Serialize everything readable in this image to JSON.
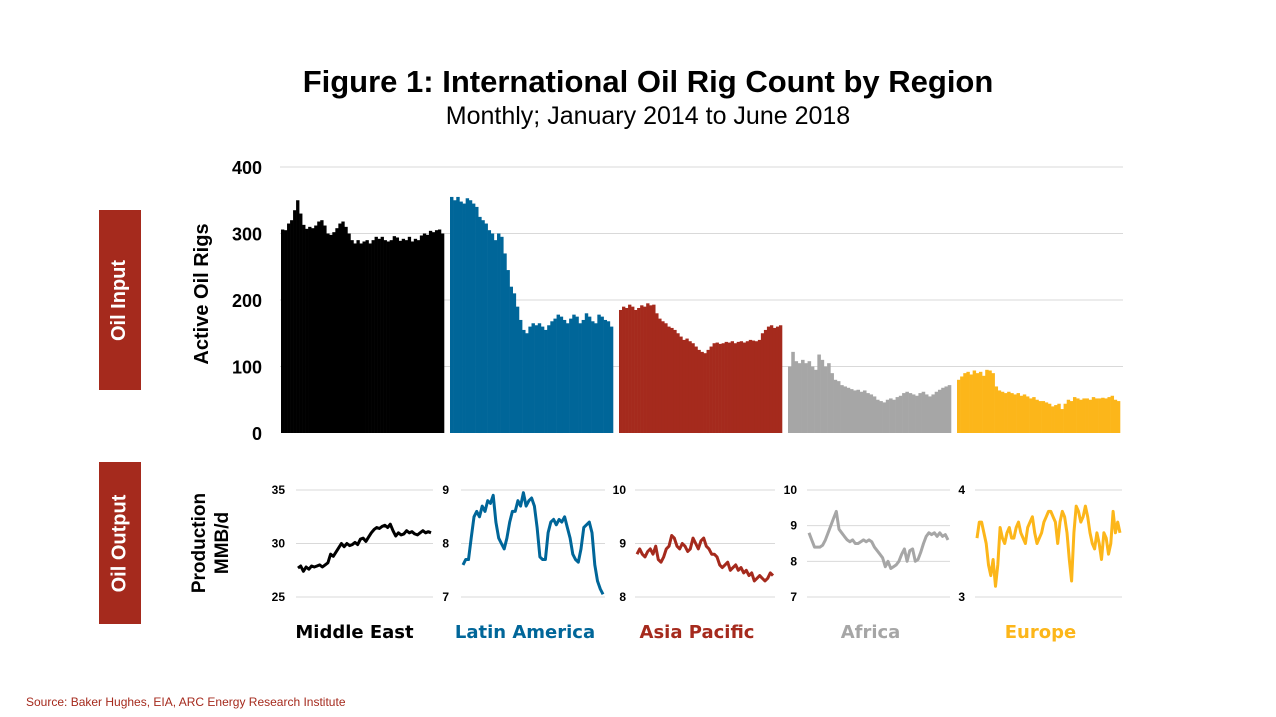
{
  "title": "Figure 1: International Oil Rig Count by Region",
  "subtitle": "Monthly; January 2014 to June 2018",
  "side_labels": {
    "input": "Oil Input",
    "output": "Oil Output"
  },
  "source": "Source: Baker Hughes, EIA, ARC Energy Research Institute",
  "chart_data": [
    {
      "type": "bar",
      "title": "",
      "ylabel": "Active Oil Rigs",
      "ylim": [
        0,
        400
      ],
      "yticks": [
        "0",
        "100",
        "200",
        "300",
        "400"
      ],
      "grid": true,
      "series": [
        {
          "name": "Middle East",
          "color": "#000000",
          "values": [
            306,
            305,
            315,
            320,
            335,
            350,
            330,
            313,
            307,
            310,
            308,
            312,
            318,
            320,
            312,
            300,
            298,
            302,
            308,
            315,
            318,
            310,
            300,
            290,
            285,
            290,
            285,
            288,
            290,
            285,
            290,
            295,
            292,
            295,
            290,
            288,
            290,
            296,
            294,
            289,
            292,
            290,
            295,
            288,
            292,
            290,
            297,
            300,
            298,
            304,
            302,
            305,
            306,
            300
          ]
        },
        {
          "name": "Latin America",
          "color": "#006699",
          "values": [
            355,
            350,
            355,
            348,
            345,
            353,
            350,
            345,
            340,
            325,
            320,
            315,
            305,
            300,
            290,
            300,
            295,
            270,
            245,
            220,
            210,
            190,
            170,
            155,
            150,
            160,
            165,
            162,
            165,
            160,
            155,
            162,
            168,
            172,
            178,
            175,
            170,
            165,
            172,
            178,
            175,
            165,
            170,
            180,
            175,
            168,
            165,
            178,
            175,
            170,
            168,
            160
          ]
        },
        {
          "name": "Asia Pacific",
          "color": "#a52a1d",
          "values": [
            185,
            190,
            188,
            193,
            190,
            185,
            188,
            192,
            190,
            195,
            192,
            193,
            180,
            172,
            168,
            165,
            160,
            158,
            155,
            150,
            145,
            140,
            142,
            138,
            135,
            130,
            125,
            122,
            120,
            125,
            130,
            135,
            136,
            134,
            135,
            137,
            136,
            138,
            135,
            137,
            138,
            136,
            138,
            140,
            139,
            138,
            140,
            150,
            155,
            160,
            162,
            158,
            160,
            162
          ]
        },
        {
          "name": "Africa",
          "color": "#a6a6a6",
          "values": [
            100,
            122,
            108,
            105,
            110,
            105,
            108,
            100,
            95,
            118,
            110,
            100,
            105,
            90,
            80,
            78,
            72,
            70,
            68,
            66,
            64,
            65,
            62,
            64,
            60,
            58,
            55,
            50,
            48,
            46,
            50,
            52,
            50,
            54,
            56,
            60,
            62,
            60,
            58,
            56,
            60,
            62,
            58,
            55,
            58,
            62,
            65,
            68,
            70,
            72
          ]
        },
        {
          "name": "Europe",
          "color": "#fcb61a",
          "values": [
            80,
            85,
            90,
            92,
            88,
            94,
            90,
            92,
            86,
            95,
            94,
            90,
            70,
            64,
            62,
            60,
            62,
            60,
            58,
            60,
            56,
            58,
            55,
            52,
            54,
            50,
            48,
            48,
            46,
            44,
            40,
            42,
            44,
            36,
            44,
            50,
            48,
            54,
            52,
            50,
            52,
            52,
            50,
            54,
            52,
            52,
            53,
            52,
            54,
            56,
            50,
            48
          ]
        }
      ]
    },
    {
      "type": "line",
      "title": "Middle East",
      "ylabel": "Production MMB/d",
      "ylim": [
        25,
        35
      ],
      "yticks": [
        "25",
        "30",
        "35"
      ],
      "color": "#000000",
      "values": [
        27.7,
        27.9,
        27.4,
        27.8,
        27.6,
        27.9,
        27.8,
        27.9,
        28.0,
        27.8,
        28.0,
        28.2,
        29.0,
        28.8,
        29.2,
        29.6,
        30.0,
        29.7,
        30.0,
        29.8,
        29.9,
        30.1,
        29.9,
        30.4,
        30.5,
        30.2,
        30.6,
        31.0,
        31.3,
        31.5,
        31.4,
        31.6,
        31.7,
        31.5,
        31.8,
        31.2,
        30.7,
        31.0,
        30.8,
        30.9,
        31.2,
        31.0,
        31.1,
        30.9,
        30.8,
        31.0,
        31.2,
        31.0,
        31.1,
        31.0
      ]
    },
    {
      "type": "line",
      "title": "Latin America",
      "ylim": [
        7,
        9
      ],
      "yticks": [
        "7",
        "8",
        "9"
      ],
      "color": "#006699",
      "values": [
        7.6,
        7.7,
        7.7,
        8.1,
        8.5,
        8.6,
        8.5,
        8.7,
        8.6,
        8.8,
        8.75,
        8.9,
        8.4,
        8.1,
        8.0,
        7.9,
        8.1,
        8.4,
        8.6,
        8.6,
        8.8,
        8.7,
        8.95,
        8.7,
        8.8,
        8.85,
        8.7,
        8.3,
        7.75,
        7.7,
        7.7,
        8.2,
        8.4,
        8.45,
        8.35,
        8.45,
        8.4,
        8.5,
        8.3,
        8.1,
        7.8,
        7.7,
        7.65,
        7.9,
        8.3,
        8.35,
        8.4,
        8.2,
        7.6,
        7.3,
        7.15,
        7.05
      ]
    },
    {
      "type": "line",
      "title": "Asia Pacific",
      "ylim": [
        8,
        10
      ],
      "yticks": [
        "8",
        "9",
        "10"
      ],
      "color": "#a52a1d",
      "values": [
        8.8,
        8.9,
        8.8,
        8.75,
        8.85,
        8.9,
        8.8,
        8.95,
        8.7,
        8.65,
        8.75,
        8.9,
        8.95,
        9.15,
        9.1,
        8.95,
        8.9,
        9.0,
        8.95,
        8.85,
        8.9,
        9.1,
        9.0,
        8.9,
        9.05,
        9.1,
        8.95,
        8.9,
        8.8,
        8.8,
        8.75,
        8.6,
        8.55,
        8.6,
        8.65,
        8.5,
        8.55,
        8.6,
        8.5,
        8.55,
        8.45,
        8.5,
        8.4,
        8.45,
        8.3,
        8.35,
        8.4,
        8.35,
        8.3,
        8.35,
        8.45,
        8.4
      ]
    },
    {
      "type": "line",
      "title": "Africa",
      "ylim": [
        7,
        10
      ],
      "yticks": [
        "7",
        "8",
        "9",
        "10"
      ],
      "color": "#a6a6a6",
      "values": [
        8.8,
        8.6,
        8.4,
        8.4,
        8.4,
        8.45,
        8.6,
        8.8,
        9.0,
        9.2,
        9.4,
        8.9,
        8.8,
        8.7,
        8.6,
        8.55,
        8.6,
        8.5,
        8.5,
        8.55,
        8.6,
        8.55,
        8.6,
        8.55,
        8.4,
        8.3,
        8.2,
        8.1,
        7.85,
        8.0,
        7.8,
        7.85,
        7.9,
        8.0,
        8.2,
        8.35,
        8.0,
        8.3,
        8.35,
        8.0,
        8.05,
        8.25,
        8.5,
        8.7,
        8.8,
        8.75,
        8.8,
        8.7,
        8.8,
        8.7,
        8.75,
        8.6
      ]
    },
    {
      "type": "line",
      "title": "Europe",
      "ylim": [
        3,
        4
      ],
      "yticks": [
        "3",
        "4"
      ],
      "color": "#fcb61a",
      "values": [
        3.55,
        3.7,
        3.7,
        3.6,
        3.5,
        3.3,
        3.2,
        3.35,
        3.1,
        3.3,
        3.65,
        3.55,
        3.5,
        3.6,
        3.65,
        3.55,
        3.55,
        3.65,
        3.7,
        3.6,
        3.55,
        3.5,
        3.65,
        3.7,
        3.75,
        3.6,
        3.5,
        3.55,
        3.6,
        3.7,
        3.75,
        3.8,
        3.8,
        3.75,
        3.7,
        3.5,
        3.7,
        3.8,
        3.75,
        3.6,
        3.35,
        3.15,
        3.6,
        3.85,
        3.8,
        3.7,
        3.75,
        3.85,
        3.75,
        3.6,
        3.5,
        3.45,
        3.6,
        3.5,
        3.35,
        3.6,
        3.55,
        3.4,
        3.5,
        3.8,
        3.6,
        3.7,
        3.6
      ]
    }
  ]
}
